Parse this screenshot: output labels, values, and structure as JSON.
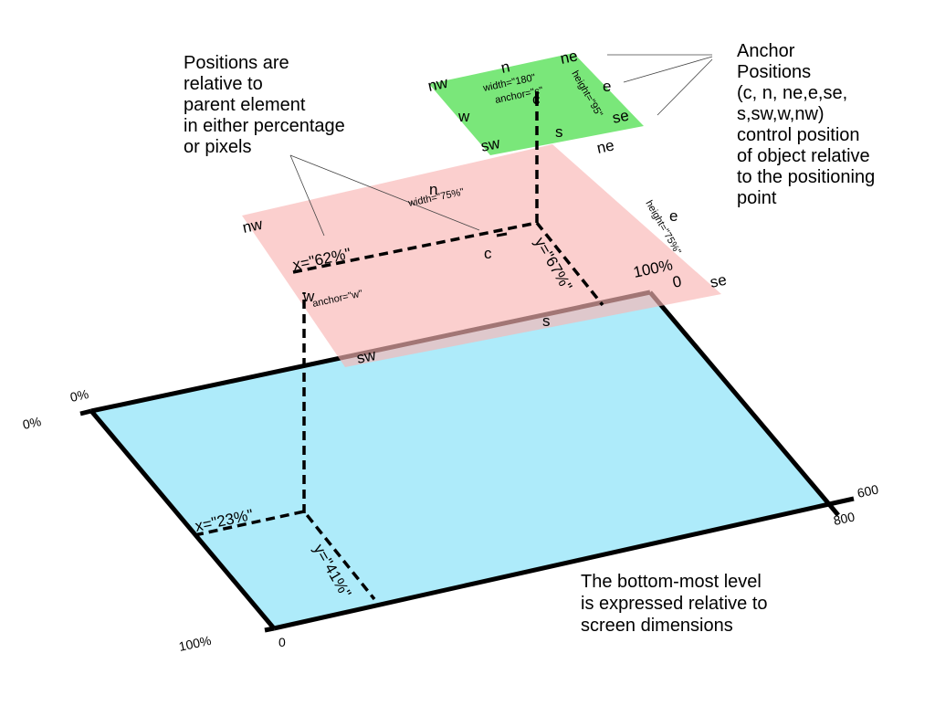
{
  "notes": {
    "positions": [
      "Positions are",
      "relative to",
      "parent element",
      "in either percentage",
      "or pixels"
    ],
    "anchor": [
      "Anchor",
      "Positions",
      "(c, n, ne,e,se,",
      "s,sw,w,nw)",
      "control position",
      "of object relative",
      "to the positioning",
      "point"
    ],
    "bottom": [
      "The bottom-most level",
      "is expressed relative to",
      "screen dimensions"
    ]
  },
  "screen": {
    "top_left_x": "0%",
    "top_left_y": "0%",
    "bottom_left": "100%",
    "bottom_left_zero": "0",
    "right_600": "600",
    "right_800": "800",
    "top_right_pct": "100%",
    "top_right_zero": "0",
    "x_value": "x=\"23%\"",
    "y_value": "y=\"41%\""
  },
  "parent": {
    "nw": "nw",
    "n": "n",
    "ne": "ne",
    "e": "e",
    "se": "se",
    "s": "s",
    "sw": "sw",
    "w": "w",
    "c": "c",
    "width": "width=\"75%\"",
    "height": "height=\"75%\"",
    "anchor": "anchor=\"w\"",
    "x_value": "x=\"62%\"",
    "y_value": "y=\"67%\""
  },
  "child": {
    "nw": "nw",
    "n": "n",
    "ne": "ne",
    "e": "e",
    "se": "se",
    "s": "s",
    "sw": "sw",
    "w": "w",
    "c": "c",
    "width": "width=\"180\"",
    "height": "height=\"95\"",
    "anchor": "anchor=\"c\""
  },
  "colors": {
    "screen_fill": "#aeebfa",
    "parent_fill": "#f9b5b3",
    "child_fill": "#7ae77a"
  }
}
